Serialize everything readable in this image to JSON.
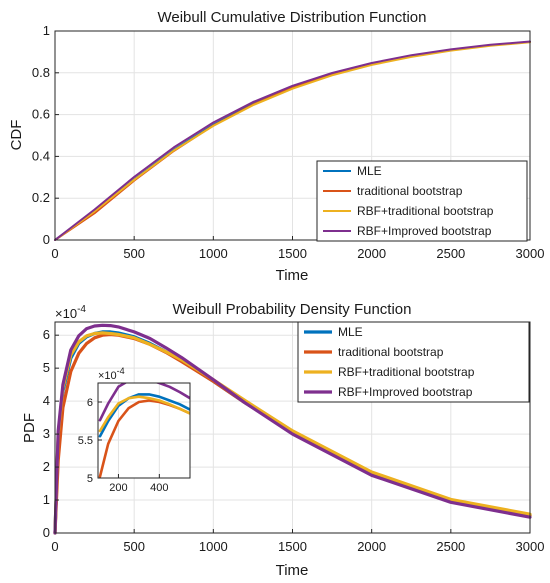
{
  "chart_data": [
    {
      "id": "cdf",
      "type": "line",
      "title": "Weibull Cumulative Distribution Function",
      "xlabel": "Time",
      "ylabel": "CDF",
      "xlim": [
        0,
        3000
      ],
      "ylim": [
        0,
        1
      ],
      "xticks": [
        "0",
        "500",
        "1000",
        "1500",
        "2000",
        "2500",
        "3000"
      ],
      "yticks": [
        "0",
        "0.2",
        "0.4",
        "0.6",
        "0.8",
        "1"
      ],
      "grid": true,
      "legend_position": "bottom-right",
      "x": [
        0,
        250,
        500,
        750,
        1000,
        1250,
        1500,
        1750,
        2000,
        2250,
        2500,
        2750,
        3000
      ],
      "series": [
        {
          "name": "MLE",
          "color": "#0072BD",
          "values": [
            0,
            0.136,
            0.29,
            0.431,
            0.551,
            0.651,
            0.73,
            0.793,
            0.842,
            0.88,
            0.91,
            0.932,
            0.948
          ]
        },
        {
          "name": "traditional bootstrap",
          "color": "#D95319",
          "values": [
            0,
            0.128,
            0.284,
            0.426,
            0.548,
            0.648,
            0.728,
            0.792,
            0.841,
            0.879,
            0.909,
            0.931,
            0.948
          ]
        },
        {
          "name": "RBF+traditional bootstrap",
          "color": "#EDB120",
          "values": [
            0,
            0.137,
            0.288,
            0.428,
            0.546,
            0.645,
            0.724,
            0.788,
            0.838,
            0.876,
            0.906,
            0.929,
            0.946
          ]
        },
        {
          "name": "RBF+Improved bootstrap",
          "color": "#7E2F8E",
          "values": [
            0,
            0.146,
            0.302,
            0.443,
            0.562,
            0.66,
            0.738,
            0.799,
            0.847,
            0.884,
            0.912,
            0.934,
            0.95
          ]
        }
      ]
    },
    {
      "id": "pdf",
      "type": "line",
      "title": "Weibull Probability Density Function",
      "xlabel": "Time",
      "ylabel": "PDF",
      "y_exponent": "×10",
      "y_exponent_power": "-4",
      "xlim": [
        0,
        3000
      ],
      "ylim": [
        0,
        6.4
      ],
      "xticks": [
        "0",
        "500",
        "1000",
        "1500",
        "2000",
        "2500",
        "3000"
      ],
      "yticks": [
        "0",
        "1",
        "2",
        "3",
        "4",
        "5",
        "6"
      ],
      "grid": true,
      "legend_position": "top-right",
      "x": [
        0,
        20,
        50,
        100,
        150,
        200,
        250,
        300,
        350,
        400,
        500,
        600,
        700,
        800,
        1000,
        1200,
        1500,
        2000,
        2500,
        3000
      ],
      "series": [
        {
          "name": "MLE",
          "color": "#0072BD",
          "values": [
            0,
            2.9,
            4.3,
            5.3,
            5.75,
            5.95,
            6.05,
            6.1,
            6.1,
            6.07,
            5.95,
            5.75,
            5.5,
            5.22,
            4.6,
            3.95,
            3.05,
            1.8,
            0.98,
            0.55
          ]
        },
        {
          "name": "traditional bootstrap",
          "color": "#D95319",
          "values": [
            0,
            2.2,
            3.8,
            4.9,
            5.45,
            5.75,
            5.92,
            6.0,
            6.02,
            6.0,
            5.9,
            5.72,
            5.48,
            5.2,
            4.6,
            3.95,
            3.05,
            1.8,
            0.98,
            0.53
          ]
        },
        {
          "name": "RBF+traditional bootstrap",
          "color": "#EDB120",
          "values": [
            0,
            3.0,
            4.4,
            5.4,
            5.8,
            5.98,
            6.05,
            6.07,
            6.05,
            6.02,
            5.92,
            5.72,
            5.5,
            5.25,
            4.65,
            4.02,
            3.1,
            1.85,
            1.02,
            0.57
          ]
        },
        {
          "name": "RBF+Improved bootstrap",
          "color": "#7E2F8E",
          "values": [
            0,
            3.1,
            4.5,
            5.55,
            5.98,
            6.2,
            6.28,
            6.3,
            6.29,
            6.25,
            6.1,
            5.9,
            5.62,
            5.32,
            4.65,
            3.95,
            3.0,
            1.75,
            0.93,
            0.48
          ]
        }
      ],
      "inset": {
        "xlim": [
          100,
          550
        ],
        "ylim": [
          5,
          6.25
        ],
        "xticks": [
          "200",
          "400"
        ],
        "yticks": [
          "5",
          "5.5",
          "6"
        ],
        "y_exponent": "×10",
        "y_exponent_power": "-4",
        "x": [
          110,
          150,
          200,
          250,
          300,
          350,
          400,
          450,
          500,
          550
        ],
        "series": [
          {
            "name": "MLE",
            "values": [
              5.55,
              5.75,
              5.95,
              6.05,
              6.1,
              6.1,
              6.07,
              6.02,
              5.97,
              5.9
            ]
          },
          {
            "name": "traditional bootstrap",
            "values": [
              5.02,
              5.45,
              5.75,
              5.92,
              6.0,
              6.02,
              6.0,
              5.96,
              5.91,
              5.85
            ]
          },
          {
            "name": "RBF+traditional bootstrap",
            "values": [
              5.62,
              5.8,
              5.98,
              6.05,
              6.07,
              6.05,
              6.02,
              5.97,
              5.91,
              5.85
            ]
          },
          {
            "name": "RBF+Improved bootstrap",
            "values": [
              5.76,
              5.98,
              6.2,
              6.28,
              6.3,
              6.29,
              6.25,
              6.2,
              6.13,
              6.05
            ]
          }
        ]
      }
    }
  ]
}
